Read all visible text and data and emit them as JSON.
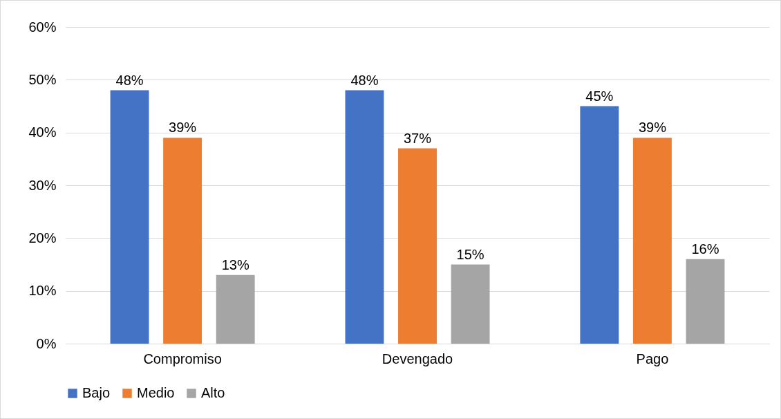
{
  "chart_data": {
    "type": "bar",
    "categories": [
      "Compromiso",
      "Devengado",
      "Pago"
    ],
    "series": [
      {
        "name": "Bajo",
        "color": "#4472c4",
        "values": [
          48,
          48,
          45
        ],
        "value_labels": [
          "48%",
          "48%",
          "45%"
        ]
      },
      {
        "name": "Medio",
        "color": "#ed7d31",
        "values": [
          39,
          37,
          39
        ],
        "value_labels": [
          "39%",
          "37%",
          "39%"
        ]
      },
      {
        "name": "Alto",
        "color": "#a5a5a5",
        "values": [
          13,
          15,
          16
        ],
        "value_labels": [
          "13%",
          "15%",
          "16%"
        ]
      }
    ],
    "ylim": [
      0,
      60
    ],
    "yticks": [
      {
        "value": 0,
        "label": "0%"
      },
      {
        "value": 10,
        "label": "10%"
      },
      {
        "value": 20,
        "label": "20%"
      },
      {
        "value": 30,
        "label": "30%"
      },
      {
        "value": 40,
        "label": "40%"
      },
      {
        "value": 50,
        "label": "50%"
      },
      {
        "value": 60,
        "label": "60%"
      }
    ],
    "grid": "y",
    "legend": "bottom"
  }
}
